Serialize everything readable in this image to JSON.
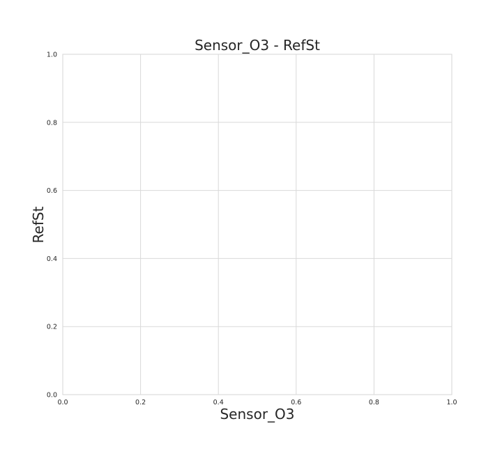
{
  "chart_data": {
    "type": "scatter",
    "title": "Sensor_O3 - RefSt",
    "xlabel": "Sensor_O3",
    "ylabel": "RefSt",
    "xlim": [
      0.0,
      1.0
    ],
    "ylim": [
      0.0,
      1.0
    ],
    "x_ticks": [
      "0.0",
      "0.2",
      "0.4",
      "0.6",
      "0.8",
      "1.0"
    ],
    "y_ticks": [
      "0.0",
      "0.2",
      "0.4",
      "0.6",
      "0.8",
      "1.0"
    ],
    "grid": true,
    "series": []
  }
}
